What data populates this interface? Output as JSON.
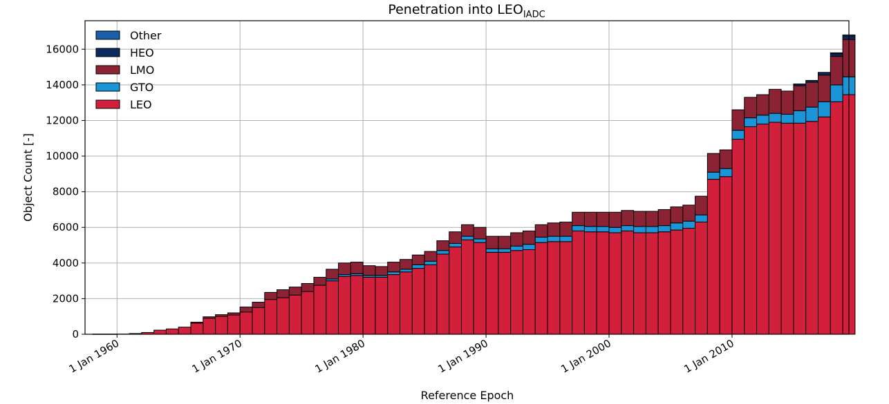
{
  "chart_data": {
    "type": "bar",
    "stacked": true,
    "title": "Penetration into LEO",
    "title_subscript": "IADC",
    "xlabel": "Reference Epoch",
    "ylabel": "Object Count [-]",
    "ylim": [
      0,
      17600
    ],
    "y_ticks": [
      0,
      2000,
      4000,
      6000,
      8000,
      10000,
      12000,
      14000,
      16000
    ],
    "x_ticks": [
      {
        "year": 1960,
        "label": "1 Jan 1960"
      },
      {
        "year": 1970,
        "label": "1 Jan 1970"
      },
      {
        "year": 1980,
        "label": "1 Jan 1980"
      },
      {
        "year": 1990,
        "label": "1 Jan 1990"
      },
      {
        "year": 2000,
        "label": "1 Jan 2000"
      },
      {
        "year": 2010,
        "label": "1 Jan 2010"
      }
    ],
    "xlim": [
      1957.6,
      1999.7
    ],
    "grid": true,
    "legend_position": "top-left",
    "x_years": [
      1958,
      1959,
      1960,
      1961,
      1962,
      1963,
      1964,
      1965,
      1966,
      1967,
      1968,
      1969,
      1970,
      1971,
      1972,
      1973,
      1974,
      1975,
      1976,
      1977,
      1978,
      1979,
      1980,
      1981,
      1982,
      1983,
      1984,
      1985,
      1986,
      1987,
      1988,
      1989,
      1990,
      1991,
      1992,
      1993,
      1994,
      1995,
      1996,
      1997,
      1998,
      1999,
      2000,
      2001,
      2002,
      2003,
      2004,
      2005,
      2006,
      2007,
      2008,
      2009,
      2010,
      2011,
      2012,
      2013,
      2014,
      2015,
      2016,
      2017,
      2018,
      2019
    ],
    "series": [
      {
        "name": "LEO",
        "color": "#d21f3c",
        "values": [
          0,
          0,
          10,
          40,
          100,
          230,
          300,
          400,
          620,
          900,
          1000,
          1080,
          1250,
          1500,
          1950,
          2050,
          2200,
          2400,
          2750,
          3000,
          3250,
          3300,
          3200,
          3200,
          3350,
          3500,
          3700,
          3900,
          4500,
          4900,
          5300,
          5150,
          4600,
          4600,
          4700,
          4750,
          5150,
          5200,
          5200,
          5800,
          5750,
          5750,
          5700,
          5800,
          5700,
          5700,
          5750,
          5850,
          5950,
          6300,
          8700,
          8850,
          10950,
          11650,
          11800,
          11900,
          11850,
          11850,
          11950,
          12200,
          13050,
          13450
        ]
      },
      {
        "name": "GTO",
        "color": "#1a96d8",
        "values": [
          0,
          0,
          0,
          0,
          0,
          0,
          0,
          0,
          0,
          0,
          0,
          0,
          0,
          0,
          0,
          0,
          0,
          0,
          0,
          100,
          100,
          100,
          100,
          100,
          150,
          150,
          200,
          200,
          200,
          200,
          200,
          200,
          200,
          200,
          250,
          300,
          300,
          300,
          300,
          300,
          300,
          300,
          300,
          300,
          350,
          350,
          350,
          400,
          400,
          400,
          400,
          450,
          500,
          500,
          500,
          500,
          500,
          700,
          800,
          850,
          950,
          1000
        ]
      },
      {
        "name": "LMO",
        "color": "#8b2335",
        "values": [
          0,
          0,
          0,
          0,
          0,
          0,
          0,
          0,
          60,
          80,
          100,
          120,
          280,
          300,
          400,
          450,
          450,
          450,
          450,
          550,
          650,
          650,
          550,
          500,
          550,
          550,
          550,
          550,
          550,
          650,
          650,
          650,
          700,
          700,
          750,
          750,
          700,
          750,
          800,
          750,
          800,
          800,
          850,
          850,
          850,
          850,
          900,
          900,
          900,
          1050,
          1050,
          1050,
          1150,
          1150,
          1150,
          1350,
          1300,
          1400,
          1400,
          1500,
          1600,
          2100
        ]
      },
      {
        "name": "HEO",
        "color": "#0b2a5e",
        "values": [
          0,
          0,
          0,
          0,
          0,
          0,
          0,
          0,
          0,
          0,
          0,
          0,
          0,
          0,
          0,
          0,
          0,
          0,
          0,
          0,
          0,
          0,
          0,
          0,
          0,
          0,
          0,
          0,
          0,
          0,
          0,
          0,
          0,
          0,
          0,
          0,
          0,
          0,
          0,
          0,
          0,
          0,
          0,
          0,
          0,
          0,
          0,
          0,
          0,
          0,
          0,
          0,
          0,
          0,
          0,
          0,
          0,
          100,
          100,
          150,
          150,
          200
        ]
      },
      {
        "name": "Other",
        "color": "#1a5eab",
        "values": [
          0,
          0,
          0,
          0,
          0,
          0,
          0,
          0,
          0,
          0,
          0,
          0,
          0,
          0,
          0,
          0,
          0,
          0,
          0,
          0,
          0,
          0,
          0,
          0,
          0,
          0,
          0,
          0,
          0,
          0,
          0,
          0,
          0,
          0,
          0,
          0,
          0,
          0,
          0,
          0,
          0,
          0,
          0,
          0,
          0,
          0,
          0,
          0,
          0,
          0,
          0,
          0,
          0,
          0,
          0,
          0,
          0,
          0,
          0,
          0,
          50,
          50
        ]
      }
    ]
  }
}
